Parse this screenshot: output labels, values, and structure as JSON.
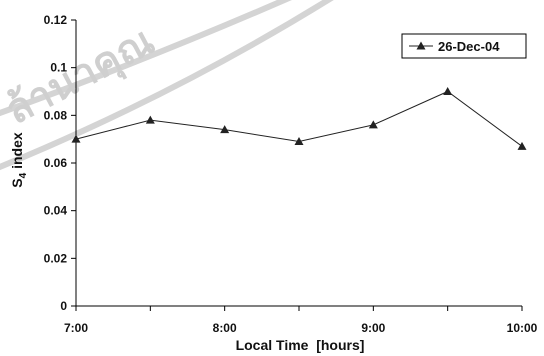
{
  "chart_data": {
    "type": "line",
    "title": "",
    "xlabel": "Local Time  [hours]",
    "ylabel": "S4 index",
    "ylabel_main": "S",
    "ylabel_sub": "4",
    "ylabel_rest": " index",
    "x_tick_labels": [
      "7:00",
      "8:00",
      "9:00",
      "10:00"
    ],
    "x_tick_hours": [
      7,
      8,
      9,
      10
    ],
    "y_tick_labels": [
      "0",
      "0.02",
      "0.04",
      "0.06",
      "0.08",
      "0.1",
      "0.12"
    ],
    "xlim": [
      7,
      10
    ],
    "ylim": [
      0,
      0.12
    ],
    "grid": false,
    "legend_position": "top-right",
    "series": [
      {
        "name": "26-Dec-04",
        "marker": "triangle",
        "color": "#222222",
        "x": [
          7.0,
          7.5,
          8.0,
          8.5,
          9.0,
          9.5,
          10.0
        ],
        "y": [
          0.07,
          0.078,
          0.074,
          0.069,
          0.076,
          0.09,
          0.067
        ]
      }
    ]
  },
  "watermark": {
    "text": "ล้านาคุณ",
    "color": "#cfcfcf"
  }
}
